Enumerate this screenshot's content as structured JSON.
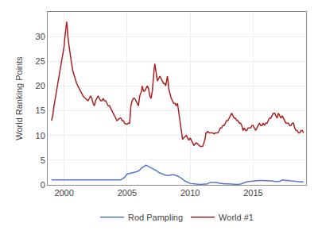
{
  "chart_data": {
    "type": "line",
    "ylabel": "World Ranking Points",
    "xlim": [
      1998.7,
      2019.2
    ],
    "xticks": [
      2000,
      2005,
      2010,
      2015
    ],
    "ylim": [
      0,
      35
    ],
    "yticks": [
      0,
      5,
      10,
      15,
      20,
      25,
      30
    ],
    "grid": true,
    "legend": "bottom",
    "series": [
      {
        "name": "Rod Pampling",
        "color": "#5577cc",
        "x": [
          1999.0,
          1999.2,
          1999.5,
          1999.7,
          2000.0,
          2000.3,
          2000.6,
          2001.0,
          2001.5,
          2002.0,
          2002.5,
          2003.0,
          2003.5,
          2004.0,
          2004.5,
          2004.8,
          2005.0,
          2005.2,
          2005.5,
          2005.8,
          2006.0,
          2006.2,
          2006.4,
          2006.5,
          2006.7,
          2006.9,
          2007.0,
          2007.2,
          2007.4,
          2007.5,
          2007.7,
          2007.8,
          2008.0,
          2008.2,
          2008.4,
          2008.5,
          2008.6,
          2008.8,
          2009.0,
          2009.2,
          2009.4,
          2009.5,
          2009.7,
          2009.9,
          2010.0,
          2010.2,
          2010.5,
          2010.8,
          2011.0,
          2011.2,
          2011.4,
          2011.5,
          2011.7,
          2012.0,
          2012.2,
          2012.5,
          2012.7,
          2013.0,
          2013.3,
          2013.5,
          2013.7,
          2014.0,
          2014.3,
          2014.5,
          2014.7,
          2015.0,
          2015.2,
          2015.3,
          2015.5,
          2015.7,
          2016.0,
          2016.3,
          2016.5,
          2016.7,
          2017.0,
          2017.2,
          2017.3,
          2017.5,
          2017.7,
          2018.0,
          2018.2,
          2018.5,
          2018.7,
          2019.0
        ],
        "values": [
          1.0,
          1.0,
          1.0,
          1.0,
          1.0,
          1.0,
          1.0,
          1.0,
          1.0,
          1.0,
          1.0,
          1.0,
          1.0,
          1.0,
          1.0,
          1.5,
          2.2,
          2.3,
          2.5,
          2.7,
          3.0,
          3.5,
          3.8,
          4.0,
          3.7,
          3.5,
          3.3,
          3.0,
          2.8,
          2.5,
          2.3,
          2.1,
          2.0,
          1.9,
          1.9,
          2.0,
          2.1,
          2.0,
          1.8,
          1.5,
          1.2,
          0.9,
          0.6,
          0.4,
          0.3,
          0.2,
          0.15,
          0.1,
          0.1,
          0.15,
          0.2,
          0.4,
          0.5,
          0.5,
          0.4,
          0.3,
          0.2,
          0.2,
          0.15,
          0.1,
          0.1,
          0.15,
          0.5,
          0.6,
          0.7,
          0.8,
          0.8,
          0.9,
          0.9,
          0.9,
          0.8,
          0.8,
          0.8,
          0.7,
          0.7,
          0.8,
          1.0,
          1.0,
          0.9,
          0.8,
          0.8,
          0.7,
          0.6,
          0.6
        ]
      },
      {
        "name": "World #1",
        "color": "#aa2222",
        "x": [
          1999.0,
          1999.1,
          1999.2,
          1999.3,
          1999.4,
          1999.5,
          1999.6,
          1999.7,
          1999.8,
          1999.9,
          2000.0,
          2000.05,
          2000.1,
          2000.15,
          2000.2,
          2000.25,
          2000.3,
          2000.4,
          2000.5,
          2000.6,
          2000.7,
          2000.9,
          2001.0,
          2001.2,
          2001.4,
          2001.5,
          2001.7,
          2001.9,
          2002.0,
          2002.1,
          2002.2,
          2002.3,
          2002.4,
          2002.5,
          2002.6,
          2002.7,
          2002.8,
          2002.9,
          2003.0,
          2003.1,
          2003.2,
          2003.3,
          2003.4,
          2003.5,
          2003.6,
          2003.7,
          2003.8,
          2003.9,
          2004.0,
          2004.1,
          2004.2,
          2004.3,
          2004.4,
          2004.5,
          2004.6,
          2004.7,
          2004.8,
          2004.9,
          2005.0,
          2005.1,
          2005.2,
          2005.25,
          2005.3,
          2005.4,
          2005.5,
          2005.6,
          2005.7,
          2005.8,
          2005.9,
          2006.0,
          2006.1,
          2006.15,
          2006.2,
          2006.25,
          2006.3,
          2006.4,
          2006.5,
          2006.6,
          2006.7,
          2006.8,
          2006.9,
          2007.0,
          2007.05,
          2007.1,
          2007.15,
          2007.2,
          2007.25,
          2007.3,
          2007.35,
          2007.4,
          2007.5,
          2007.6,
          2007.7,
          2007.8,
          2007.9,
          2008.0,
          2008.05,
          2008.1,
          2008.15,
          2008.2,
          2008.25,
          2008.3,
          2008.4,
          2008.5,
          2008.6,
          2008.7,
          2008.8,
          2008.9,
          2009.0,
          2009.05,
          2009.1,
          2009.2,
          2009.25,
          2009.3,
          2009.35,
          2009.4,
          2009.5,
          2009.6,
          2009.7,
          2009.8,
          2009.9,
          2010.0,
          2010.1,
          2010.2,
          2010.3,
          2010.4,
          2010.5,
          2010.6,
          2010.7,
          2010.8,
          2010.9,
          2011.0,
          2011.1,
          2011.2,
          2011.25,
          2011.3,
          2011.4,
          2011.5,
          2011.6,
          2011.7,
          2011.8,
          2011.9,
          2012.0,
          2012.1,
          2012.2,
          2012.3,
          2012.4,
          2012.5,
          2012.6,
          2012.7,
          2012.8,
          2012.9,
          2013.0,
          2013.1,
          2013.2,
          2013.3,
          2013.4,
          2013.5,
          2013.6,
          2013.7,
          2013.8,
          2013.9,
          2014.0,
          2014.1,
          2014.2,
          2014.3,
          2014.4,
          2014.5,
          2014.6,
          2014.7,
          2014.8,
          2014.9,
          2015.0,
          2015.1,
          2015.2,
          2015.3,
          2015.4,
          2015.5,
          2015.6,
          2015.7,
          2015.8,
          2015.9,
          2016.0,
          2016.1,
          2016.2,
          2016.3,
          2016.4,
          2016.5,
          2016.6,
          2016.7,
          2016.8,
          2016.9,
          2017.0,
          2017.1,
          2017.2,
          2017.3,
          2017.4,
          2017.5,
          2017.6,
          2017.7,
          2017.8,
          2017.9,
          2018.0,
          2018.1,
          2018.2,
          2018.3,
          2018.4,
          2018.5,
          2018.6,
          2018.7,
          2018.8,
          2018.9,
          2019.0
        ],
        "values": [
          13.0,
          14.0,
          16.0,
          17.5,
          19.0,
          20.5,
          22.0,
          23.5,
          25.0,
          26.5,
          28.0,
          29.5,
          30.5,
          32.0,
          33.0,
          32.0,
          30.0,
          28.0,
          26.0,
          24.5,
          23.0,
          21.5,
          20.5,
          19.5,
          18.5,
          18.0,
          17.5,
          17.0,
          17.5,
          18.0,
          17.5,
          16.5,
          16.0,
          17.0,
          17.5,
          18.0,
          17.5,
          17.0,
          17.0,
          17.5,
          17.0,
          17.0,
          16.5,
          16.0,
          16.0,
          15.5,
          15.0,
          14.5,
          14.0,
          13.5,
          13.0,
          13.2,
          13.5,
          13.5,
          13.0,
          13.0,
          12.5,
          12.3,
          12.3,
          12.5,
          12.5,
          14.0,
          16.0,
          17.0,
          17.5,
          17.5,
          17.0,
          16.5,
          16.0,
          18.0,
          18.5,
          19.0,
          20.0,
          19.5,
          19.0,
          19.0,
          19.5,
          20.0,
          19.5,
          18.0,
          17.5,
          19.0,
          20.5,
          22.5,
          23.5,
          24.5,
          23.5,
          22.5,
          21.5,
          21.0,
          21.5,
          22.0,
          21.5,
          21.0,
          20.5,
          20.5,
          20.0,
          20.5,
          21.5,
          22.0,
          21.0,
          19.5,
          18.5,
          17.5,
          17.0,
          16.5,
          16.5,
          16.0,
          16.5,
          15.5,
          14.5,
          13.0,
          11.5,
          10.5,
          9.5,
          9.2,
          9.5,
          9.8,
          10.0,
          9.5,
          9.0,
          9.5,
          9.0,
          8.5,
          8.0,
          8.3,
          8.5,
          8.3,
          8.0,
          7.8,
          7.8,
          7.8,
          8.5,
          9.5,
          10.5,
          10.5,
          10.8,
          10.5,
          10.5,
          10.5,
          10.5,
          10.3,
          10.5,
          10.5,
          10.5,
          11.0,
          11.5,
          11.5,
          12.0,
          12.0,
          12.5,
          13.0,
          13.0,
          13.5,
          14.0,
          14.5,
          14.0,
          13.5,
          13.5,
          13.0,
          13.0,
          12.5,
          12.5,
          12.0,
          11.0,
          11.5,
          11.0,
          11.0,
          11.5,
          11.5,
          11.5,
          12.0,
          12.0,
          11.5,
          11.0,
          11.5,
          12.0,
          12.5,
          12.0,
          12.0,
          12.5,
          12.0,
          12.5,
          12.5,
          13.0,
          13.5,
          13.5,
          14.0,
          14.5,
          14.5,
          14.0,
          13.5,
          14.5,
          14.0,
          13.5,
          14.0,
          13.5,
          13.0,
          12.5,
          12.5,
          12.5,
          12.0,
          12.0,
          12.5,
          12.5,
          11.5,
          11.0,
          11.0,
          10.5,
          10.5,
          11.0,
          11.0,
          10.5
        ]
      }
    ]
  }
}
